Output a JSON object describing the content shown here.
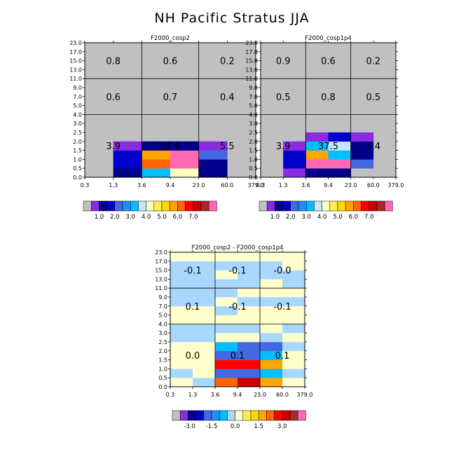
{
  "page_title": "NH Pacific Stratus JJA",
  "axes": {
    "x_ticks": [
      "0.3",
      "1.3",
      "3.6",
      "9.4",
      "23.0",
      "60.0",
      "379.0"
    ],
    "y_ticks": [
      "0.0",
      "0.5",
      "1.0",
      "1.5",
      "2.0",
      "2.5",
      "3.0",
      "4.0",
      "5.0",
      "7.0",
      "9.0",
      "11.0",
      "13.0",
      "15.0",
      "17.0",
      "23.0"
    ]
  },
  "colors": {
    "background_gray": "#c0c0c0",
    "palette_abs": [
      "#c0c0c0",
      "#8a2be2",
      "#00008b",
      "#0000cd",
      "#4169e1",
      "#1e90ff",
      "#00bfff",
      "#c0e8ff",
      "#ffffc0",
      "#ffee55",
      "#ffd700",
      "#ffa500",
      "#ff6600",
      "#ff0000",
      "#cc0000",
      "#a52a2a",
      "#ff69b4"
    ],
    "palette_diff": [
      "#c0c0c0",
      "#8a2be2",
      "#00008b",
      "#0000cd",
      "#4169e1",
      "#1e90ff",
      "#00bfff",
      "#a8d8ff",
      "#ffffcc",
      "#ffee55",
      "#ffd700",
      "#ffa500",
      "#ff6600",
      "#ff0000",
      "#cc0000",
      "#a52a2a",
      "#ff69b4"
    ]
  },
  "legends": {
    "abs_labels": [
      "1.0",
      "2.0",
      "3.0",
      "4.0",
      "5.0",
      "6.0",
      "7.0"
    ],
    "diff_labels": [
      "-3.0",
      "-1.5",
      "0.0",
      "1.5",
      "3.0"
    ]
  },
  "chart_data": [
    {
      "type": "heatmap",
      "title": "F2000_cosp2",
      "section_values": [
        [
          "3.9",
          "37.6",
          "5.5"
        ],
        [
          "0.6",
          "0.7",
          "0.4"
        ],
        [
          "0.8",
          "0.6",
          "0.2"
        ]
      ],
      "cells": [
        {
          "x": 1,
          "y": 0,
          "c": "#00008b"
        },
        {
          "x": 1,
          "y": 1,
          "c": "#0000cd"
        },
        {
          "x": 1,
          "y": 2,
          "c": "#0000cd"
        },
        {
          "x": 1,
          "y": 3,
          "c": "#8a2be2"
        },
        {
          "x": 2,
          "y": 0,
          "c": "#00bfff"
        },
        {
          "x": 2,
          "y": 1,
          "c": "#ff6600"
        },
        {
          "x": 2,
          "y": 2,
          "c": "#ffa500"
        },
        {
          "x": 2,
          "y": 3,
          "c": "#00008b"
        },
        {
          "x": 3,
          "y": 0,
          "c": "#ffffc0"
        },
        {
          "x": 3,
          "y": 1,
          "c": "#ff69b4"
        },
        {
          "x": 3,
          "y": 2,
          "c": "#ff69b4"
        },
        {
          "x": 3,
          "y": 3,
          "c": "#00008b"
        },
        {
          "x": 4,
          "y": 0,
          "c": "#00008b"
        },
        {
          "x": 4,
          "y": 1,
          "c": "#00008b"
        },
        {
          "x": 4,
          "y": 2,
          "c": "#4169e1"
        },
        {
          "x": 4,
          "y": 3,
          "c": "#8a2be2"
        }
      ]
    },
    {
      "type": "heatmap",
      "title": "F2000_cosp1p4",
      "section_values": [
        [
          "3.9",
          "37.5",
          "5.4"
        ],
        [
          "0.5",
          "0.8",
          "0.5"
        ],
        [
          "0.9",
          "0.6",
          "0.2"
        ]
      ],
      "cells": [
        {
          "x": 1,
          "y": 0,
          "c": "#8a2be2"
        },
        {
          "x": 1,
          "y": 1,
          "c": "#0000cd"
        },
        {
          "x": 1,
          "y": 2,
          "c": "#0000cd"
        },
        {
          "x": 1,
          "y": 3,
          "c": "#8a2be2"
        },
        {
          "x": 2,
          "y": 0,
          "c": "#00008b"
        },
        {
          "x": 2,
          "y": 1,
          "c": "#ff69b4"
        },
        {
          "x": 2,
          "y": 2,
          "c": "#ffa500"
        },
        {
          "x": 2,
          "y": 3,
          "c": "#00bfff"
        },
        {
          "x": 2,
          "y": 4,
          "c": "#8a2be2"
        },
        {
          "x": 3,
          "y": 0,
          "c": "#00008b"
        },
        {
          "x": 3,
          "y": 1,
          "c": "#ff69b4"
        },
        {
          "x": 3,
          "y": 2,
          "c": "#00bfff"
        },
        {
          "x": 3,
          "y": 3,
          "c": "#c0e8ff"
        },
        {
          "x": 3,
          "y": 4,
          "c": "#0000cd"
        },
        {
          "x": 4,
          "y": 0,
          "c": "#c0c0c0"
        },
        {
          "x": 4,
          "y": 1,
          "c": "#4169e1"
        },
        {
          "x": 4,
          "y": 2,
          "c": "#00008b"
        },
        {
          "x": 4,
          "y": 3,
          "c": "#00008b"
        },
        {
          "x": 4,
          "y": 4,
          "c": "#8a2be2"
        }
      ]
    },
    {
      "type": "heatmap",
      "title": "F2000_cosp2 - F2000_cosp1p4",
      "section_values": [
        [
          "0.0",
          "0.1",
          "0.1"
        ],
        [
          "0.1",
          "-0.1",
          "-0.1"
        ],
        [
          "-0.1",
          "-0.1",
          "-0.0"
        ]
      ],
      "cells": [
        {
          "x": 0,
          "y": 0,
          "c": "#ffffcc"
        },
        {
          "x": 0,
          "y": 1,
          "c": "#a8d8ff"
        },
        {
          "x": 0,
          "y": 2,
          "c": "#ffffcc"
        },
        {
          "x": 0,
          "y": 3,
          "c": "#ffffcc"
        },
        {
          "x": 0,
          "y": 4,
          "c": "#ffffcc"
        },
        {
          "x": 0,
          "y": 5,
          "c": "#a8d8ff"
        },
        {
          "x": 0,
          "y": 6,
          "c": "#a8d8ff"
        },
        {
          "x": 0,
          "y": 7,
          "c": "#ffffcc"
        },
        {
          "x": 0,
          "y": 8,
          "c": "#ffffcc"
        },
        {
          "x": 0,
          "y": 9,
          "c": "#a8d8ff"
        },
        {
          "x": 0,
          "y": 10,
          "c": "#a8d8ff"
        },
        {
          "x": 0,
          "y": 11,
          "c": "#a8d8ff"
        },
        {
          "x": 0,
          "y": 12,
          "c": "#a8d8ff"
        },
        {
          "x": 0,
          "y": 13,
          "c": "#a8d8ff"
        },
        {
          "x": 0,
          "y": 14,
          "c": "#ffffcc"
        },
        {
          "x": 1,
          "y": 0,
          "c": "#a8d8ff"
        },
        {
          "x": 1,
          "y": 1,
          "c": "#ffffcc"
        },
        {
          "x": 1,
          "y": 2,
          "c": "#ffffcc"
        },
        {
          "x": 1,
          "y": 3,
          "c": "#ffffcc"
        },
        {
          "x": 1,
          "y": 4,
          "c": "#ffffcc"
        },
        {
          "x": 1,
          "y": 5,
          "c": "#a8d8ff"
        },
        {
          "x": 1,
          "y": 6,
          "c": "#a8d8ff"
        },
        {
          "x": 1,
          "y": 7,
          "c": "#ffffcc"
        },
        {
          "x": 1,
          "y": 8,
          "c": "#ffffcc"
        },
        {
          "x": 1,
          "y": 9,
          "c": "#a8d8ff"
        },
        {
          "x": 1,
          "y": 10,
          "c": "#a8d8ff"
        },
        {
          "x": 1,
          "y": 11,
          "c": "#a8d8ff"
        },
        {
          "x": 1,
          "y": 12,
          "c": "#a8d8ff"
        },
        {
          "x": 1,
          "y": 13,
          "c": "#a8d8ff"
        },
        {
          "x": 1,
          "y": 14,
          "c": "#ffffcc"
        },
        {
          "x": 2,
          "y": 0,
          "c": "#ff6600"
        },
        {
          "x": 2,
          "y": 1,
          "c": "#4169e1"
        },
        {
          "x": 2,
          "y": 2,
          "c": "#ff0000"
        },
        {
          "x": 2,
          "y": 3,
          "c": "#4169e1"
        },
        {
          "x": 2,
          "y": 4,
          "c": "#00bfff"
        },
        {
          "x": 2,
          "y": 5,
          "c": "#ffffcc"
        },
        {
          "x": 2,
          "y": 6,
          "c": "#a8d8ff"
        },
        {
          "x": 2,
          "y": 7,
          "c": "#ffffcc"
        },
        {
          "x": 2,
          "y": 8,
          "c": "#a8d8ff"
        },
        {
          "x": 2,
          "y": 9,
          "c": "#ffffcc"
        },
        {
          "x": 2,
          "y": 10,
          "c": "#a8d8ff"
        },
        {
          "x": 2,
          "y": 11,
          "c": "#a8d8ff"
        },
        {
          "x": 2,
          "y": 12,
          "c": "#ffffcc"
        },
        {
          "x": 2,
          "y": 13,
          "c": "#a8d8ff"
        },
        {
          "x": 2,
          "y": 14,
          "c": "#ffffcc"
        },
        {
          "x": 3,
          "y": 0,
          "c": "#cc0000"
        },
        {
          "x": 3,
          "y": 1,
          "c": "#4169e1"
        },
        {
          "x": 3,
          "y": 2,
          "c": "#ff0000"
        },
        {
          "x": 3,
          "y": 3,
          "c": "#4169e1"
        },
        {
          "x": 3,
          "y": 4,
          "c": "#4169e1"
        },
        {
          "x": 3,
          "y": 5,
          "c": "#ffffcc"
        },
        {
          "x": 3,
          "y": 6,
          "c": "#a8d8ff"
        },
        {
          "x": 3,
          "y": 7,
          "c": "#ffffcc"
        },
        {
          "x": 3,
          "y": 8,
          "c": "#ffffcc"
        },
        {
          "x": 3,
          "y": 9,
          "c": "#a8d8ff"
        },
        {
          "x": 3,
          "y": 10,
          "c": "#ffffcc"
        },
        {
          "x": 3,
          "y": 11,
          "c": "#a8d8ff"
        },
        {
          "x": 3,
          "y": 12,
          "c": "#a8d8ff"
        },
        {
          "x": 3,
          "y": 13,
          "c": "#a8d8ff"
        },
        {
          "x": 3,
          "y": 14,
          "c": "#ffffcc"
        },
        {
          "x": 4,
          "y": 0,
          "c": "#ffa500"
        },
        {
          "x": 4,
          "y": 1,
          "c": "#00bfff"
        },
        {
          "x": 4,
          "y": 2,
          "c": "#ffa500"
        },
        {
          "x": 4,
          "y": 3,
          "c": "#00bfff"
        },
        {
          "x": 4,
          "y": 4,
          "c": "#4169e1"
        },
        {
          "x": 4,
          "y": 5,
          "c": "#a8d8ff"
        },
        {
          "x": 4,
          "y": 6,
          "c": "#ffffcc"
        },
        {
          "x": 4,
          "y": 7,
          "c": "#ffffcc"
        },
        {
          "x": 4,
          "y": 8,
          "c": "#ffffcc"
        },
        {
          "x": 4,
          "y": 9,
          "c": "#a8d8ff"
        },
        {
          "x": 4,
          "y": 10,
          "c": "#ffffcc"
        },
        {
          "x": 4,
          "y": 11,
          "c": "#ffffcc"
        },
        {
          "x": 4,
          "y": 12,
          "c": "#a8d8ff"
        },
        {
          "x": 4,
          "y": 13,
          "c": "#a8d8ff"
        },
        {
          "x": 4,
          "y": 14,
          "c": "#ffffcc"
        },
        {
          "x": 5,
          "y": 0,
          "c": "#ffffcc"
        },
        {
          "x": 5,
          "y": 1,
          "c": "#a8d8ff"
        },
        {
          "x": 5,
          "y": 2,
          "c": "#ffffcc"
        },
        {
          "x": 5,
          "y": 3,
          "c": "#ffffcc"
        },
        {
          "x": 5,
          "y": 4,
          "c": "#a8d8ff"
        },
        {
          "x": 5,
          "y": 5,
          "c": "#ffffcc"
        },
        {
          "x": 5,
          "y": 6,
          "c": "#a8d8ff"
        },
        {
          "x": 5,
          "y": 7,
          "c": "#ffffcc"
        },
        {
          "x": 5,
          "y": 8,
          "c": "#ffffcc"
        },
        {
          "x": 5,
          "y": 9,
          "c": "#a8d8ff"
        },
        {
          "x": 5,
          "y": 10,
          "c": "#ffffcc"
        },
        {
          "x": 5,
          "y": 11,
          "c": "#a8d8ff"
        },
        {
          "x": 5,
          "y": 12,
          "c": "#a8d8ff"
        },
        {
          "x": 5,
          "y": 13,
          "c": "#ffffcc"
        },
        {
          "x": 5,
          "y": 14,
          "c": "#ffffcc"
        }
      ]
    }
  ]
}
